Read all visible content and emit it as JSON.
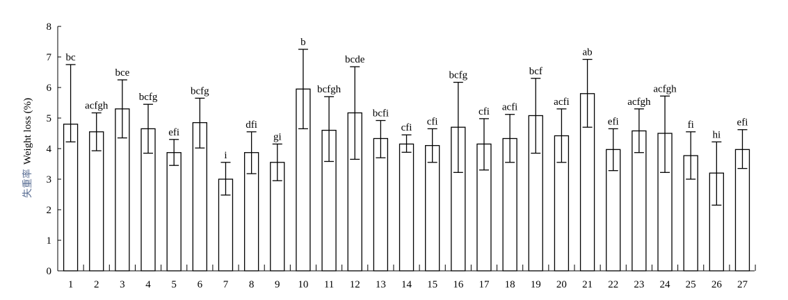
{
  "chart_data": {
    "type": "bar",
    "ylabel_cn": "失重率",
    "ylabel_en": "Weight loss (%)",
    "ylim": [
      0,
      8
    ],
    "yticks": [
      "0",
      "1",
      "2",
      "3",
      "4",
      "5",
      "6",
      "7",
      "8"
    ],
    "categories": [
      "1",
      "2",
      "3",
      "4",
      "5",
      "6",
      "7",
      "8",
      "9",
      "10",
      "11",
      "12",
      "13",
      "14",
      "15",
      "16",
      "17",
      "18",
      "19",
      "20",
      "21",
      "22",
      "23",
      "24",
      "25",
      "26",
      "27"
    ],
    "values": [
      4.8,
      4.55,
      5.3,
      4.65,
      3.87,
      4.85,
      3.0,
      3.87,
      3.55,
      5.95,
      4.6,
      5.17,
      4.33,
      4.15,
      4.1,
      4.7,
      4.15,
      4.33,
      5.08,
      4.42,
      5.8,
      3.97,
      4.58,
      4.5,
      3.77,
      3.2,
      3.97
    ],
    "err_low": [
      4.22,
      3.93,
      4.35,
      3.85,
      3.45,
      4.02,
      2.48,
      3.18,
      2.95,
      4.65,
      3.58,
      3.65,
      3.7,
      3.88,
      3.55,
      3.22,
      3.3,
      3.55,
      3.85,
      3.55,
      4.7,
      3.28,
      3.87,
      3.22,
      3.0,
      2.15,
      3.35
    ],
    "err_high": [
      6.75,
      5.17,
      6.25,
      5.45,
      4.3,
      5.65,
      3.55,
      4.55,
      4.15,
      7.25,
      5.7,
      6.68,
      4.92,
      4.45,
      4.65,
      6.17,
      4.98,
      5.12,
      6.3,
      5.3,
      6.92,
      4.65,
      5.3,
      5.72,
      4.55,
      4.22,
      4.62
    ],
    "labels": [
      "bc",
      "acfgh",
      "bce",
      "bcfg",
      "efi",
      "bcfg",
      "i",
      "dfi",
      "gi",
      "b",
      "bcfgh",
      "bcde",
      "bcfi",
      "cfi",
      "cfi",
      "bcfg",
      "cfi",
      "acfi",
      "bcf",
      "acfi",
      "ab",
      "efi",
      "acfgh",
      "acfgh",
      "fi",
      "hi",
      "efi"
    ]
  }
}
